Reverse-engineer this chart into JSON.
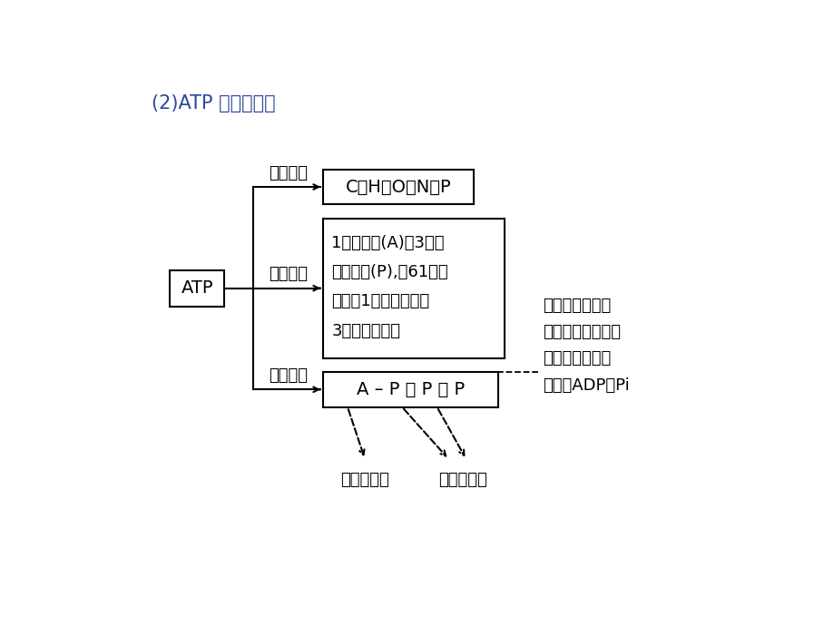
{
  "title": "(2)ATP 的分子结构",
  "title_color": "#2e4799",
  "atp_label": "ATP",
  "label1": "元素组成",
  "label2": "化学组成",
  "label3": "结构简式",
  "box1_text": "C、H、O、N、P",
  "box2_line1": "1分子腺苷(A)和3分子",
  "box2_line2": "磷酸基团(P),或61分子",
  "box2_line3": "核糖、1分子腺噸唠和",
  "box2_line4": "3分子磷酸基团",
  "box3_A": "A",
  "box3_dash": " – ",
  "box3_P1": "P",
  "box3_wave1": " ~ ",
  "box3_P2": "P",
  "box3_wave2": " ~ ",
  "box3_P3": "P",
  "note_line1": "水解时，该高能",
  "note_line2": "磷酸键首先断裂，",
  "note_line3": "释放出能量，同",
  "note_line4": "时生成ADP和Pi",
  "label_putong": "普通磷酸键",
  "label_gaoneng": "高能磷酸键"
}
